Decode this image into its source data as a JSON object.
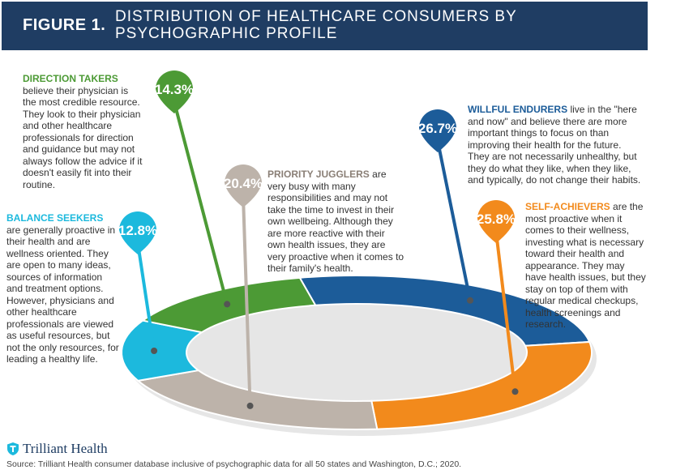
{
  "header": {
    "figure_label": "FIGURE 1.",
    "title": "DISTRIBUTION OF HEALTHCARE CONSUMERS BY PSYCHOGRAPHIC PROFILE"
  },
  "chart_data": {
    "type": "pie",
    "style": "donut",
    "title": "DISTRIBUTION OF HEALTHCARE CONSUMERS BY PSYCHOGRAPHIC PROFILE",
    "categories": [
      "Willful Endurers",
      "Self-Achievers",
      "Priority Jugglers",
      "Balance Seekers",
      "Direction Takers"
    ],
    "values": [
      26.7,
      25.8,
      20.4,
      12.8,
      14.3
    ],
    "data_labels": [
      "26.7%",
      "25.8%",
      "20.4%",
      "12.8%",
      "14.3%"
    ],
    "colors": [
      "#1c5c99",
      "#f28a1c",
      "#bdb3aa",
      "#1cb9dd",
      "#4c9a35"
    ]
  },
  "descriptions": {
    "direction_takers": {
      "name": "DIRECTION TAKERS",
      "text": "believe their physician is the most credible resource. They look to their physician and other healthcare professionals for direction and guidance but may not always follow the advice if it doesn't easily fit into their routine."
    },
    "balance_seekers": {
      "name": "BALANCE SEEKERS",
      "text": "are generally proactive in their health and are wellness oriented. They are open to many ideas, sources of information and treatment options. However, physicians and other healthcare professionals are viewed as useful resources, but not the only resources, for leading a healthy life."
    },
    "priority_jugglers": {
      "name": "PRIORITY JUGGLERS",
      "text": "are very busy with many responsibilities and may not take the time to invest in their own wellbeing. Although they are more reactive with their own health issues, they are very proactive when it comes to their family's health."
    },
    "willful_endurers": {
      "name": "WILLFUL ENDURERS",
      "text": "live in the \"here and now\" and believe there are more important things to focus on than improving their health for the future. They are not necessarily unhealthy, but they do what they like, when they like, and typically, do not change their habits."
    },
    "self_achievers": {
      "name": "SELF-ACHIEVERS",
      "text": "are the most proactive when it comes to their wellness, investing what is necessary toward their health and appearance. They may have health issues, but they stay on top of them with regular medical checkups, health screenings and research."
    }
  },
  "footer": {
    "logo_text": "Trilliant Health",
    "source": "Source: Trilliant Health consumer database inclusive of psychographic data for all 50 states and Washington, D.C.; 2020."
  }
}
